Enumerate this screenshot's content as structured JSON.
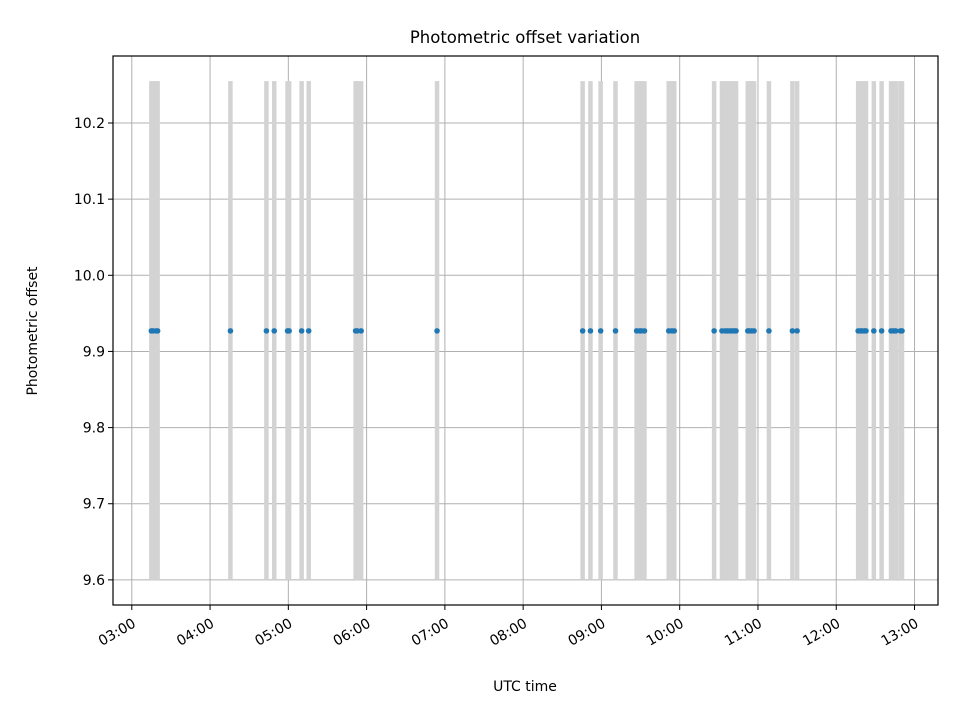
{
  "chart_data": {
    "type": "scatter",
    "title": "Photometric offset variation",
    "xlabel": "UTC time",
    "ylabel": "Photometric offset",
    "x_tick_labels": [
      "03:00",
      "04:00",
      "05:00",
      "06:00",
      "07:00",
      "08:00",
      "09:00",
      "10:00",
      "11:00",
      "12:00",
      "13:00"
    ],
    "x_ticks_hours": [
      3,
      4,
      5,
      6,
      7,
      8,
      9,
      10,
      11,
      12,
      13
    ],
    "xlim_hours": [
      2.76,
      13.3
    ],
    "y_ticks": [
      9.6,
      9.7,
      9.8,
      9.9,
      10.0,
      10.1,
      10.2
    ],
    "y_tick_labels": [
      "9.6",
      "9.7",
      "9.8",
      "9.9",
      "10.0",
      "10.1",
      "10.2"
    ],
    "ylim": [
      9.567,
      10.288
    ],
    "grid": true,
    "point_color": "#1f77b4",
    "band_color": "#d3d3d3",
    "band_range": [
      9.6,
      10.255
    ],
    "series": [
      {
        "y": 9.927,
        "x_hours": [
          3.25,
          3.27,
          3.31,
          3.33,
          4.26,
          4.72,
          4.82,
          4.99,
          5.01,
          5.17,
          5.26,
          5.86,
          5.88,
          5.93,
          6.9,
          8.76,
          8.86,
          8.99,
          9.18,
          9.45,
          9.49,
          9.51,
          9.55,
          9.86,
          9.9,
          9.93,
          10.44,
          10.54,
          10.58,
          10.61,
          10.64,
          10.67,
          10.7,
          10.72,
          10.87,
          10.89,
          10.92,
          10.95,
          11.14,
          11.44,
          11.5,
          12.28,
          12.31,
          12.33,
          12.36,
          12.38,
          12.48,
          12.58,
          12.7,
          12.73,
          12.76,
          12.82,
          12.84
        ]
      }
    ]
  }
}
